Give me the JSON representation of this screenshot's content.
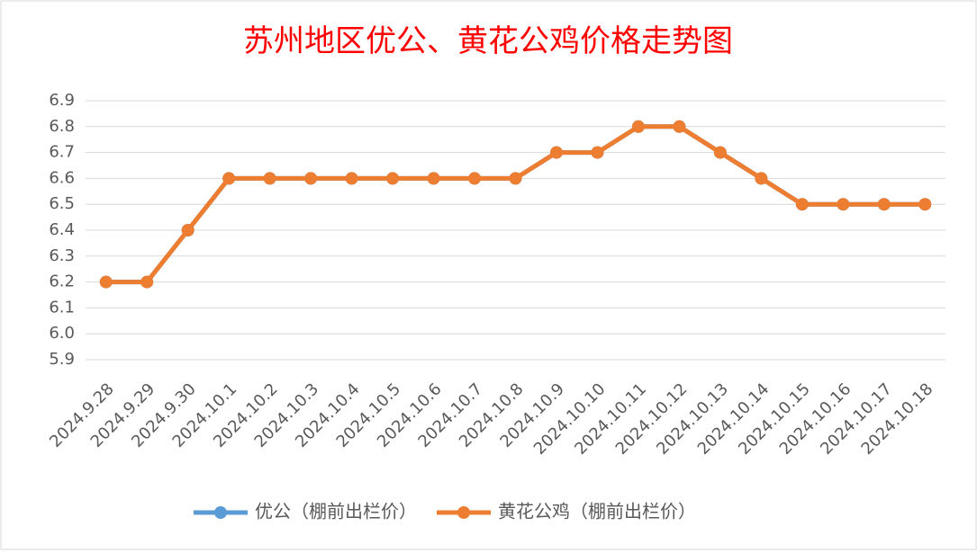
{
  "chart_data": {
    "type": "line",
    "title": "苏州地区优公、黄花公鸡价格走势图",
    "categories": [
      "2024.9.28",
      "2024.9.29",
      "2024.9.30",
      "2024.10.1",
      "2024.10.2",
      "2024.10.3",
      "2024.10.4",
      "2024.10.5",
      "2024.10.6",
      "2024.10.7",
      "2024.10.8",
      "2024.10.9",
      "2024.10.10",
      "2024.10.11",
      "2024.10.12",
      "2024.10.13",
      "2024.10.14",
      "2024.10.15",
      "2024.10.16",
      "2024.10.17",
      "2024.10.18"
    ],
    "series": [
      {
        "name": "优公（棚前出栏价）",
        "color": "#5b9bd5",
        "values": [
          6.2,
          6.2,
          6.4,
          6.6,
          6.6,
          6.6,
          6.6,
          6.6,
          6.6,
          6.6,
          6.6,
          6.7,
          6.7,
          6.8,
          6.8,
          6.7,
          6.6,
          6.5,
          6.5,
          6.5,
          6.5
        ]
      },
      {
        "name": "黄花公鸡（棚前出栏价）",
        "color": "#ed7d31",
        "values": [
          6.2,
          6.2,
          6.4,
          6.6,
          6.6,
          6.6,
          6.6,
          6.6,
          6.6,
          6.6,
          6.6,
          6.7,
          6.7,
          6.8,
          6.8,
          6.7,
          6.6,
          6.5,
          6.5,
          6.5,
          6.5
        ]
      }
    ],
    "ylim": [
      5.9,
      6.9
    ],
    "yticks": [
      5.9,
      {
        "value": 6,
        "label": "6.0"
      },
      6.1,
      6.2,
      6.3,
      6.4,
      6.5,
      6.6,
      6.7,
      6.8,
      6.9
    ],
    "grid": true,
    "legend": "bottom"
  }
}
